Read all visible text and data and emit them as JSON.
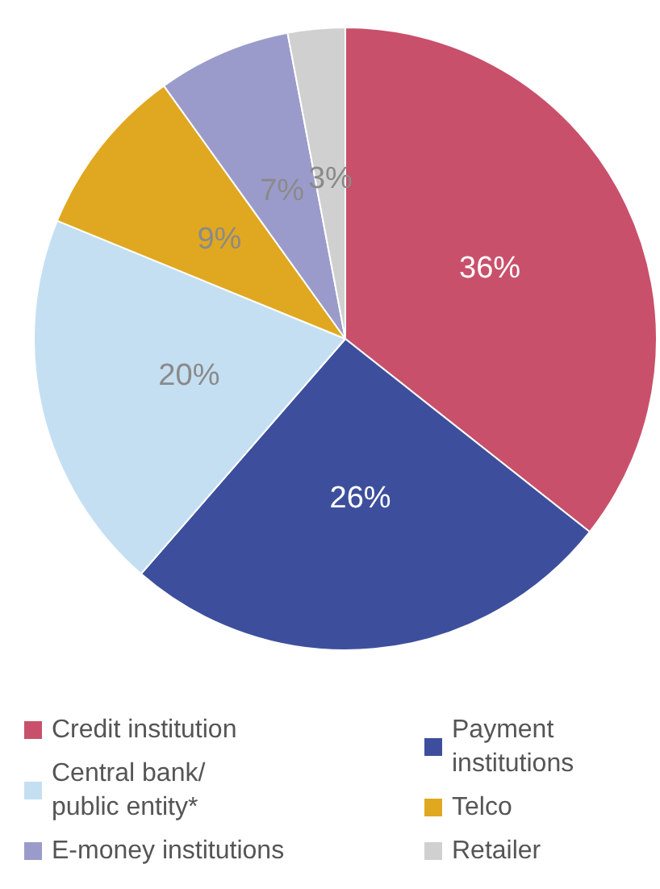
{
  "chart_data": {
    "type": "pie",
    "categories": [
      "Credit institution",
      "Payment institutions",
      "Central bank/public entity*",
      "Telco",
      "E-money institutions",
      "Retailer"
    ],
    "values": [
      36,
      26,
      20,
      9,
      7,
      3
    ],
    "colors": [
      "#c9506b",
      "#3d4f9c",
      "#c5dff2",
      "#e0a820",
      "#9b9bcb",
      "#d0d0d0"
    ],
    "value_labels": [
      "36%",
      "26%",
      "20%",
      "9%",
      "7%",
      "3%"
    ],
    "legend": "bottom"
  }
}
